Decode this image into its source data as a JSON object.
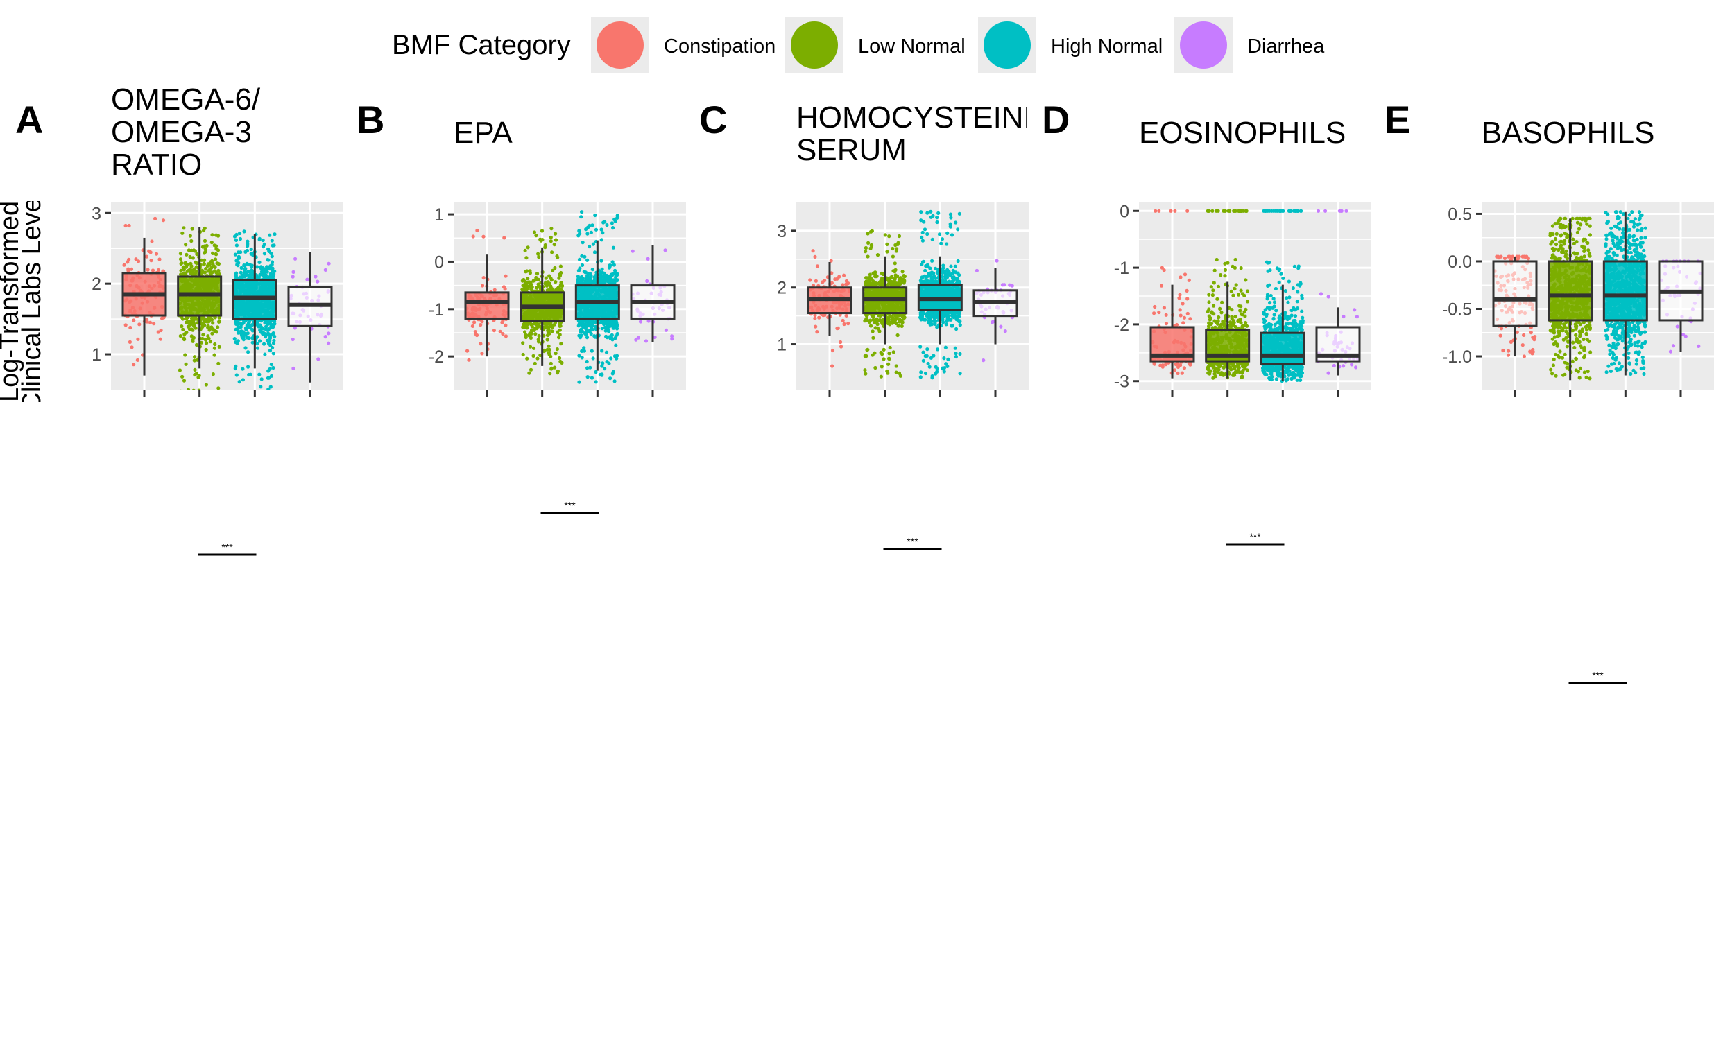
{
  "legend": {
    "title": "BMF Category",
    "items": [
      {
        "label": "Constipation",
        "color": "#F8766D"
      },
      {
        "label": "Low Normal",
        "color": "#7CAE00"
      },
      {
        "label": "High Normal",
        "color": "#00BFC4"
      },
      {
        "label": "Diarrhea",
        "color": "#C77CFF"
      }
    ]
  },
  "ylabel_lines": [
    "Log-Transformed",
    "Clinical Labs Level"
  ],
  "significance_label": "***",
  "chart_data": [
    {
      "type": "box",
      "panel": "A",
      "title_lines": [
        "OMEGA-6/",
        "OMEGA-3",
        "RATIO"
      ],
      "categories": [
        "Constipation",
        "Low Normal",
        "High Normal",
        "Diarrhea"
      ],
      "ylim": [
        0.5,
        3.15
      ],
      "yticks": [
        1,
        2,
        3
      ],
      "ytick_labels": [
        "1",
        "2",
        "3"
      ],
      "grid": true,
      "series": [
        {
          "name": "Constipation",
          "q1": 1.55,
          "median": 1.85,
          "q3": 2.15,
          "whisker_low": 0.7,
          "whisker_high": 2.65,
          "point_min": 0.65,
          "point_max": 3.1,
          "n_points": 120
        },
        {
          "name": "Low Normal",
          "q1": 1.55,
          "median": 1.85,
          "q3": 2.1,
          "whisker_low": 0.8,
          "whisker_high": 2.8,
          "point_min": 0.4,
          "point_max": 2.8,
          "n_points": 700
        },
        {
          "name": "High Normal",
          "q1": 1.5,
          "median": 1.8,
          "q3": 2.05,
          "whisker_low": 0.8,
          "whisker_high": 2.7,
          "point_min": 0.25,
          "point_max": 2.75,
          "n_points": 900
        },
        {
          "name": "Diarrhea",
          "q1": 1.4,
          "median": 1.7,
          "q3": 1.95,
          "whisker_low": 0.6,
          "whisker_high": 2.45,
          "point_min": 0.6,
          "point_max": 2.45,
          "n_points": 45
        }
      ]
    },
    {
      "type": "box",
      "panel": "B",
      "title_lines": [
        "EPA"
      ],
      "categories": [
        "Constipation",
        "Low Normal",
        "High Normal",
        "Diarrhea"
      ],
      "ylim": [
        -2.7,
        1.25
      ],
      "yticks": [
        -2,
        -1,
        0,
        1
      ],
      "ytick_labels": [
        "-2",
        "-1",
        "0",
        "1"
      ],
      "grid": true,
      "series": [
        {
          "name": "Constipation",
          "q1": -1.2,
          "median": -0.85,
          "q3": -0.65,
          "whisker_low": -2.0,
          "whisker_high": 0.15,
          "point_min": -2.2,
          "point_max": 0.7,
          "n_points": 120
        },
        {
          "name": "Low Normal",
          "q1": -1.25,
          "median": -0.95,
          "q3": -0.65,
          "whisker_low": -2.2,
          "whisker_high": 0.3,
          "point_min": -2.4,
          "point_max": 0.7,
          "n_points": 700
        },
        {
          "name": "High Normal",
          "q1": -1.2,
          "median": -0.85,
          "q3": -0.5,
          "whisker_low": -2.3,
          "whisker_high": 0.45,
          "point_min": -2.55,
          "point_max": 1.05,
          "n_points": 900
        },
        {
          "name": "Diarrhea",
          "q1": -1.2,
          "median": -0.85,
          "q3": -0.5,
          "whisker_low": -1.7,
          "whisker_high": 0.35,
          "point_min": -1.75,
          "point_max": 0.35,
          "n_points": 45
        }
      ]
    },
    {
      "type": "box",
      "panel": "C",
      "title_lines": [
        "HOMOCYSTEINE",
        "SERUM"
      ],
      "categories": [
        "Constipation",
        "Low Normal",
        "High Normal",
        "Diarrhea"
      ],
      "ylim": [
        0.2,
        3.5
      ],
      "yticks": [
        1,
        2,
        3
      ],
      "ytick_labels": [
        "1",
        "2",
        "3"
      ],
      "grid": true,
      "series": [
        {
          "name": "Constipation",
          "q1": 1.55,
          "median": 1.8,
          "q3": 2.0,
          "whisker_low": 1.15,
          "whisker_high": 2.45,
          "point_min": 0.6,
          "point_max": 2.75,
          "n_points": 120
        },
        {
          "name": "Low Normal",
          "q1": 1.55,
          "median": 1.8,
          "q3": 2.0,
          "whisker_low": 1.0,
          "whisker_high": 2.55,
          "point_min": 0.4,
          "point_max": 3.0,
          "n_points": 700
        },
        {
          "name": "High Normal",
          "q1": 1.6,
          "median": 1.8,
          "q3": 2.05,
          "whisker_low": 1.0,
          "whisker_high": 2.55,
          "point_min": 0.4,
          "point_max": 3.35,
          "n_points": 900
        },
        {
          "name": "Diarrhea",
          "q1": 1.5,
          "median": 1.75,
          "q3": 1.95,
          "whisker_low": 1.0,
          "whisker_high": 2.35,
          "point_min": 0.55,
          "point_max": 2.65,
          "n_points": 45
        }
      ]
    },
    {
      "type": "box",
      "panel": "D",
      "title_lines": [
        "EOSINOPHILS"
      ],
      "categories": [
        "Constipation",
        "Low Normal",
        "High Normal",
        "Diarrhea"
      ],
      "ylim": [
        -3.15,
        0.15
      ],
      "yticks": [
        -3,
        -2,
        -1,
        0
      ],
      "ytick_labels": [
        "-3",
        "-2",
        "-1",
        "0"
      ],
      "grid": true,
      "series": [
        {
          "name": "Constipation",
          "q1": -2.65,
          "median": -2.55,
          "q3": -2.05,
          "whisker_low": -2.95,
          "whisker_high": -1.3,
          "point_min": -2.95,
          "point_max": -0.85,
          "n_points": 120
        },
        {
          "name": "Low Normal",
          "q1": -2.65,
          "median": -2.55,
          "q3": -2.1,
          "whisker_low": -2.95,
          "whisker_high": -1.25,
          "point_min": -2.95,
          "point_max": -0.8,
          "n_points": 700
        },
        {
          "name": "High Normal",
          "q1": -2.7,
          "median": -2.55,
          "q3": -2.15,
          "whisker_low": -3.0,
          "whisker_high": -1.3,
          "point_min": -3.0,
          "point_max": -0.9,
          "n_points": 900
        },
        {
          "name": "Diarrhea",
          "q1": -2.65,
          "median": -2.55,
          "q3": -2.05,
          "whisker_low": -2.9,
          "whisker_high": -1.7,
          "point_min": -2.9,
          "point_max": -1.05,
          "n_points": 45
        }
      ]
    },
    {
      "type": "box",
      "panel": "E",
      "title_lines": [
        "BASOPHILS"
      ],
      "categories": [
        "Constipation",
        "Low Normal",
        "High Normal",
        "Diarrhea"
      ],
      "ylim": [
        -1.35,
        0.62
      ],
      "yticks": [
        -1.0,
        -0.5,
        0.0,
        0.5
      ],
      "ytick_labels": [
        "-1.0",
        "-0.5",
        "0.0",
        "0.5"
      ],
      "grid": true,
      "series": [
        {
          "name": "Constipation",
          "q1": -0.68,
          "median": -0.4,
          "q3": 0.0,
          "whisker_low": -1.0,
          "whisker_high": 0.05,
          "point_min": -1.0,
          "point_max": 0.05,
          "n_points": 120
        },
        {
          "name": "Low Normal",
          "q1": -0.62,
          "median": -0.36,
          "q3": 0.0,
          "whisker_low": -1.25,
          "whisker_high": 0.45,
          "point_min": -1.25,
          "point_max": 0.45,
          "n_points": 700
        },
        {
          "name": "High Normal",
          "q1": -0.62,
          "median": -0.36,
          "q3": 0.0,
          "whisker_low": -1.2,
          "whisker_high": 0.52,
          "point_min": -1.2,
          "point_max": 0.52,
          "n_points": 900
        },
        {
          "name": "Diarrhea",
          "q1": -0.62,
          "median": -0.32,
          "q3": 0.0,
          "whisker_low": -0.95,
          "whisker_high": 0.0,
          "point_min": -0.95,
          "point_max": 0.0,
          "n_points": 45
        }
      ]
    }
  ]
}
